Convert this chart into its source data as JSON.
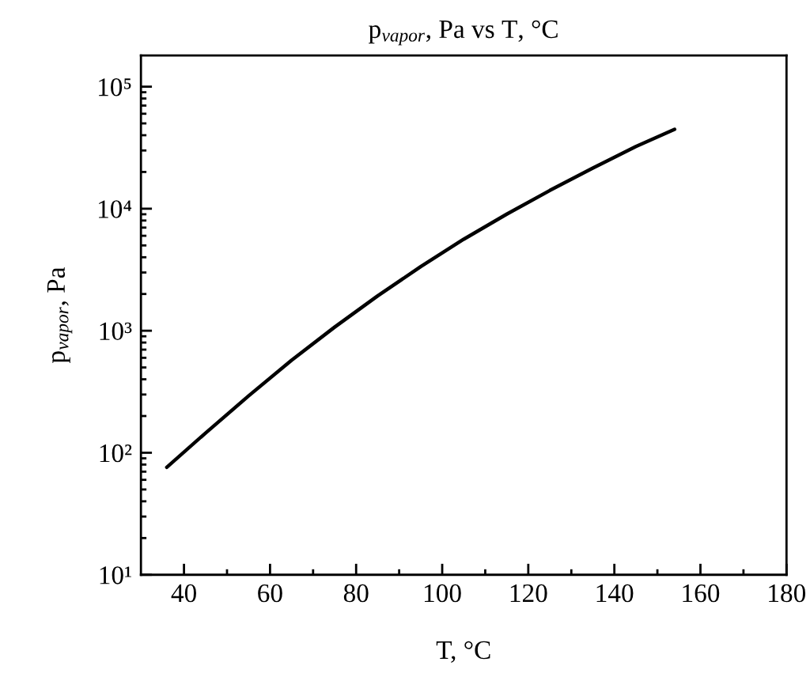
{
  "chart_data": {
    "type": "line",
    "title": "p$_{vapor}$, Pa vs T, °C",
    "xlabel": "T, °C",
    "ylabel": "p$_{vapor}$, Pa",
    "log": "y",
    "xlim": [
      30,
      180
    ],
    "ylim": [
      10,
      180000
    ],
    "xticks": [
      40,
      {
        "value": 50,
        "label": null
      },
      60,
      {
        "value": 70,
        "label": null
      },
      80,
      {
        "value": 90,
        "label": null
      },
      100,
      {
        "value": 110,
        "label": null
      },
      120,
      {
        "value": 130,
        "label": null
      },
      140,
      {
        "value": 150,
        "label": null
      },
      160,
      {
        "value": 170,
        "label": null
      },
      180
    ],
    "yticks": [
      {
        "value": 10,
        "label": "10¹"
      },
      {
        "value": 20,
        "label": null
      },
      {
        "value": 30,
        "label": null
      },
      {
        "value": 40,
        "label": null
      },
      {
        "value": 50,
        "label": null
      },
      {
        "value": 60,
        "label": null
      },
      {
        "value": 70,
        "label": null
      },
      {
        "value": 80,
        "label": null
      },
      {
        "value": 90,
        "label": null
      },
      {
        "value": 100,
        "label": "10²"
      },
      {
        "value": 200,
        "label": null
      },
      {
        "value": 300,
        "label": null
      },
      {
        "value": 400,
        "label": null
      },
      {
        "value": 500,
        "label": null
      },
      {
        "value": 600,
        "label": null
      },
      {
        "value": 700,
        "label": null
      },
      {
        "value": 800,
        "label": null
      },
      {
        "value": 900,
        "label": null
      },
      {
        "value": 1000,
        "label": "10³"
      },
      {
        "value": 2000,
        "label": null
      },
      {
        "value": 3000,
        "label": null
      },
      {
        "value": 4000,
        "label": null
      },
      {
        "value": 5000,
        "label": null
      },
      {
        "value": 6000,
        "label": null
      },
      {
        "value": 7000,
        "label": null
      },
      {
        "value": 8000,
        "label": null
      },
      {
        "value": 9000,
        "label": null
      },
      {
        "value": 10000,
        "label": "10⁴"
      },
      {
        "value": 20000,
        "label": null
      },
      {
        "value": 30000,
        "label": null
      },
      {
        "value": 40000,
        "label": null
      },
      {
        "value": 50000,
        "label": null
      },
      {
        "value": 60000,
        "label": null
      },
      {
        "value": 70000,
        "label": null
      },
      {
        "value": 80000,
        "label": null
      },
      {
        "value": 90000,
        "label": null
      },
      {
        "value": 100000,
        "label": "10⁵"
      }
    ],
    "x": [
      36,
      45,
      55,
      65,
      75,
      85,
      95,
      105,
      115,
      125,
      135,
      145,
      154
    ],
    "series": [
      {
        "color": "#000000",
        "values": [
          76,
          145,
          292,
          573,
          1070,
          1930,
          3350,
          5620,
          9020,
          14100,
          21500,
          32300,
          44700
        ]
      }
    ],
    "line_style": "solid"
  }
}
